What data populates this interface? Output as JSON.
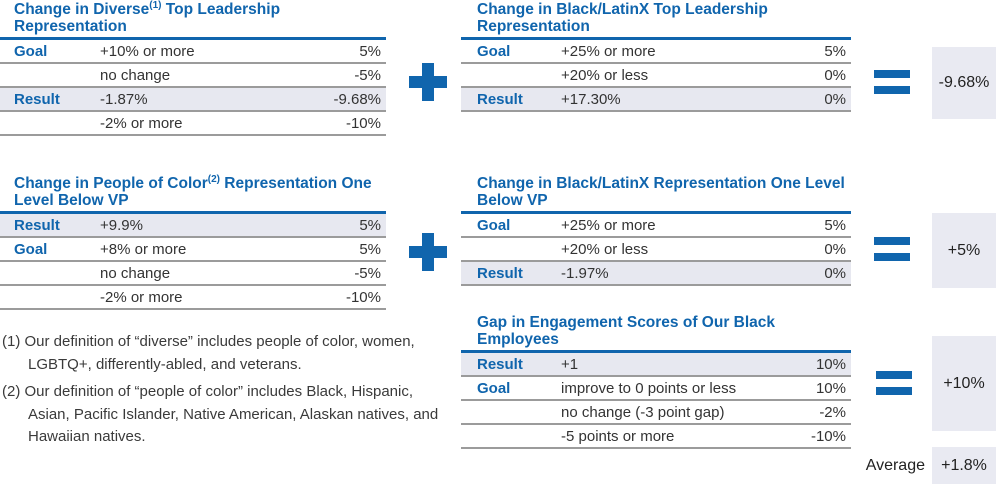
{
  "colors": {
    "accent_blue": "#1065ad",
    "shaded_row": "#e7e8f0",
    "result_box_bg": "#e9eaf2",
    "border_gray": "#9b9b9b",
    "text_dark": "#333333"
  },
  "tables": {
    "diverse_top": {
      "title_pre": "Change in Diverse",
      "title_sup": "(1)",
      "title_post": " Top Leadership Representation",
      "rows": [
        {
          "label": "Goal",
          "desc": "+10% or more",
          "value": "5%"
        },
        {
          "label": "",
          "desc": "no change",
          "value": "-5%"
        },
        {
          "label": "Result",
          "desc": "-1.87%",
          "value": "-9.68%"
        },
        {
          "label": "",
          "desc": "-2% or more",
          "value": "-10%"
        }
      ]
    },
    "black_latinx_top": {
      "title_pre": "Change in Black/LatinX Top Leadership Representation",
      "title_sup": "",
      "title_post": "",
      "rows": [
        {
          "label": "Goal",
          "desc": "+25% or more",
          "value": "5%"
        },
        {
          "label": "",
          "desc": "+20% or less",
          "value": "0%"
        },
        {
          "label": "Result",
          "desc": "+17.30%",
          "value": "0%"
        }
      ]
    },
    "poc_below_vp": {
      "title_pre": "Change in People of Color",
      "title_sup": "(2)",
      "title_post": " Representation One Level Below VP",
      "rows": [
        {
          "label": "Result",
          "desc": "+9.9%",
          "value": "5%"
        },
        {
          "label": "Goal",
          "desc": "+8% or more",
          "value": "5%"
        },
        {
          "label": "",
          "desc": "no change",
          "value": "-5%"
        },
        {
          "label": "",
          "desc": "-2% or more",
          "value": "-10%"
        }
      ]
    },
    "black_latinx_below_vp": {
      "title_pre": "Change in Black/LatinX Representation One Level Below VP",
      "title_sup": "",
      "title_post": "",
      "rows": [
        {
          "label": "Goal",
          "desc": "+25% or more",
          "value": "5%"
        },
        {
          "label": "",
          "desc": "+20% or less",
          "value": "0%"
        },
        {
          "label": "Result",
          "desc": "-1.97%",
          "value": "0%"
        }
      ]
    },
    "engagement_gap": {
      "title_pre": "Gap in Engagement Scores of Our Black Employees",
      "title_sup": "",
      "title_post": "",
      "rows": [
        {
          "label": "Result",
          "desc": "+1",
          "value": "10%"
        },
        {
          "label": "Goal",
          "desc": "improve to 0 points or less",
          "value": "10%"
        },
        {
          "label": "",
          "desc": "no change (-3 point gap)",
          "value": "-2%"
        },
        {
          "label": "",
          "desc": "-5 points or more",
          "value": "-10%"
        }
      ]
    }
  },
  "operators": {
    "plus": "+",
    "equals": "="
  },
  "results": {
    "top_total": "-9.68%",
    "middle_total": "+5%",
    "bottom_total": "+10%",
    "average_label": "Average",
    "average_value": "+1.8%"
  },
  "footnotes": [
    "(1) Our definition of “diverse” includes people of color, women, LGBTQ+, differently-abled, and veterans.",
    "(2) Our definition of “people of color” includes Black, Hispanic, Asian, Pacific Islander, Native American, Alaskan natives, and Hawaiian natives."
  ]
}
